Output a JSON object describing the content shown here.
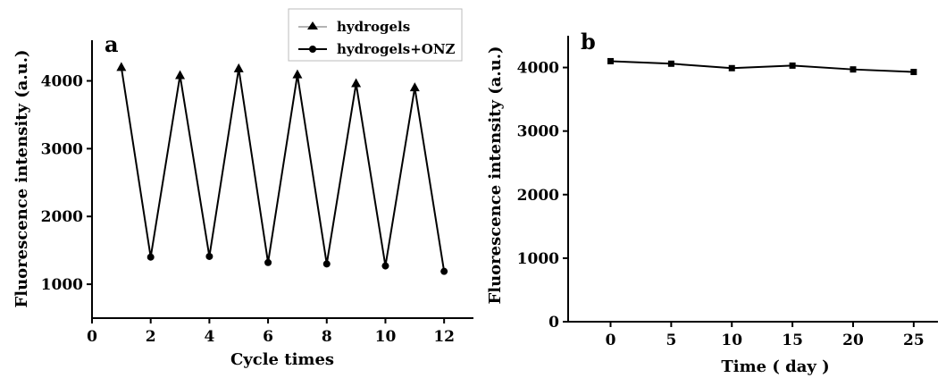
{
  "chart_data": [
    {
      "panel": "a",
      "type": "line",
      "xlabel": "Cycle times",
      "ylabel": "Fluorescence intensity (a.u.)",
      "xlim": [
        0,
        13
      ],
      "ylim": [
        500,
        4600
      ],
      "xticks": [
        0,
        2,
        4,
        6,
        8,
        10,
        12
      ],
      "yticks": [
        1000,
        2000,
        3000,
        4000
      ],
      "legend": {
        "placement": "top-right",
        "entries": [
          {
            "label": "hydrogels",
            "marker": "triangle"
          },
          {
            "label": "hydrogels+ONZ",
            "marker": "circle"
          }
        ]
      },
      "series": [
        {
          "name": "hydrogels",
          "marker": "triangle",
          "x": [
            1,
            3,
            5,
            7,
            9,
            11
          ],
          "y": [
            4200,
            4080,
            4180,
            4090,
            3960,
            3900
          ]
        },
        {
          "name": "hydrogels+ONZ",
          "marker": "circle",
          "x": [
            2,
            4,
            6,
            8,
            10,
            12
          ],
          "y": [
            1400,
            1410,
            1320,
            1300,
            1270,
            1190
          ]
        }
      ],
      "connecting_line": {
        "x": [
          1,
          2,
          3,
          4,
          5,
          6,
          7,
          8,
          9,
          10,
          11,
          12
        ],
        "y": [
          4200,
          1400,
          4080,
          1410,
          4180,
          1320,
          4090,
          1300,
          3960,
          1270,
          3900,
          1190
        ]
      }
    },
    {
      "panel": "b",
      "type": "line",
      "xlabel": "Time ( day )",
      "ylabel": "Fluorescence intensity (a.u.)",
      "xlim": [
        -3.5,
        27
      ],
      "ylim": [
        0,
        4500
      ],
      "xticks": [
        0,
        5,
        10,
        15,
        20,
        25
      ],
      "yticks": [
        0,
        1000,
        2000,
        3000,
        4000
      ],
      "series": [
        {
          "marker": "square",
          "x": [
            0,
            5,
            10,
            15,
            20,
            25
          ],
          "y": [
            4100,
            4060,
            3990,
            4030,
            3970,
            3930
          ]
        }
      ]
    }
  ]
}
